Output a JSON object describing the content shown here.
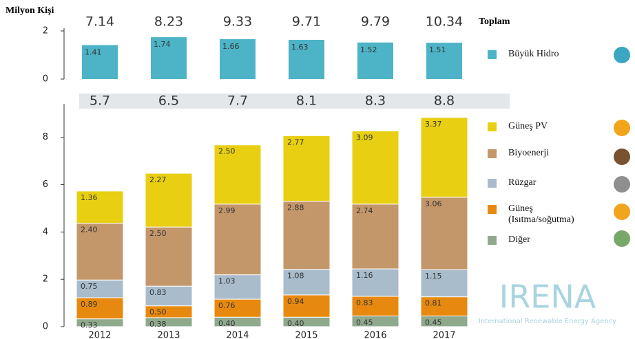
{
  "logo": {
    "name": "IRENA",
    "subtitle": "International Renewable Energy Agency"
  },
  "chart_data": [
    {
      "type": "bar",
      "ylabel": "Milyon Kişi",
      "totals_label": "Toplam",
      "categories": [
        "2012",
        "2013",
        "2014",
        "2015",
        "2016",
        "2017"
      ],
      "totals": [
        7.14,
        8.23,
        9.33,
        9.71,
        9.79,
        10.34
      ],
      "series": [
        {
          "name": "Büyük Hidro",
          "color": "#4db3c6",
          "values": [
            1.41,
            1.74,
            1.66,
            1.63,
            1.52,
            1.51
          ]
        }
      ],
      "ylim": [
        0,
        2
      ],
      "yticks": [
        0,
        2
      ]
    },
    {
      "type": "stacked_bar",
      "categories": [
        "2012",
        "2013",
        "2014",
        "2015",
        "2016",
        "2017"
      ],
      "totals": [
        5.7,
        6.5,
        7.7,
        8.1,
        8.3,
        8.8
      ],
      "series": [
        {
          "name": "Diğer",
          "color": "#8fa98c",
          "values": [
            0.33,
            0.38,
            0.4,
            0.4,
            0.45,
            0.45
          ],
          "value_labels": [
            "0.33",
            "0.38",
            "0.40",
            "0.40",
            "0.45",
            "0.45"
          ]
        },
        {
          "name": "Güneş (Isıtma/soğutma)",
          "color": "#e8890f",
          "values": [
            0.89,
            0.5,
            0.76,
            0.94,
            0.83,
            0.81
          ],
          "value_labels": [
            "0.89",
            "0.50",
            "0.76",
            "0.94",
            "0.83",
            "0.81"
          ]
        },
        {
          "name": "Rüzgar",
          "color": "#a9bccb",
          "values": [
            0.75,
            0.83,
            1.03,
            1.08,
            1.16,
            1.15
          ],
          "value_labels": [
            "0.75",
            "0.83",
            "1.03",
            "1.08",
            "1.16",
            "1.15"
          ]
        },
        {
          "name": "Biyoenerji",
          "color": "#c4976a",
          "values": [
            2.4,
            2.5,
            2.99,
            2.88,
            2.74,
            3.06
          ],
          "value_labels": [
            "2.40",
            "2.50",
            "2.99",
            "2.88",
            "2.74",
            "3.06"
          ]
        },
        {
          "name": "Güneş PV",
          "color": "#e8cf12",
          "values": [
            1.36,
            2.27,
            2.5,
            2.77,
            3.09,
            3.37
          ],
          "value_labels": [
            "1.36",
            "2.27",
            "2.50",
            "2.77",
            "3.09",
            "3.37"
          ]
        }
      ],
      "ylim": [
        0,
        9.3
      ],
      "yticks": [
        0,
        2,
        4,
        6,
        8
      ]
    }
  ]
}
